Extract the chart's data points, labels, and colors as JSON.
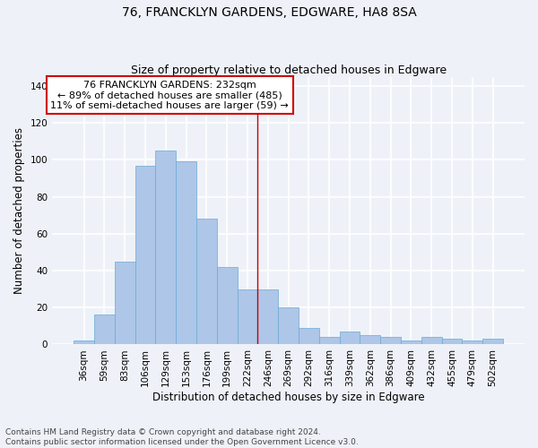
{
  "title": "76, FRANCKLYN GARDENS, EDGWARE, HA8 8SA",
  "subtitle": "Size of property relative to detached houses in Edgware",
  "xlabel": "Distribution of detached houses by size in Edgware",
  "ylabel": "Number of detached properties",
  "categories": [
    "36sqm",
    "59sqm",
    "83sqm",
    "106sqm",
    "129sqm",
    "153sqm",
    "176sqm",
    "199sqm",
    "222sqm",
    "246sqm",
    "269sqm",
    "292sqm",
    "316sqm",
    "339sqm",
    "362sqm",
    "386sqm",
    "409sqm",
    "432sqm",
    "455sqm",
    "479sqm",
    "502sqm"
  ],
  "values": [
    2,
    16,
    45,
    97,
    105,
    99,
    68,
    42,
    30,
    30,
    20,
    9,
    4,
    7,
    5,
    4,
    2,
    4,
    3,
    2,
    3
  ],
  "bar_color": "#aec6e8",
  "bar_edge_color": "#6aaad4",
  "marker_label_line1": "76 FRANCKLYN GARDENS: 232sqm",
  "marker_label_line2": "← 89% of detached houses are smaller (485)",
  "marker_label_line3": "11% of semi-detached houses are larger (59) →",
  "annotation_box_color": "#ffffff",
  "annotation_box_edge_color": "#cc0000",
  "vline_color": "#cc0000",
  "vline_x": 8.5,
  "ylim": [
    0,
    145
  ],
  "yticks": [
    0,
    20,
    40,
    60,
    80,
    100,
    120,
    140
  ],
  "footer_line1": "Contains HM Land Registry data © Crown copyright and database right 2024.",
  "footer_line2": "Contains public sector information licensed under the Open Government Licence v3.0.",
  "background_color": "#eef2f8",
  "grid_color": "#ffffff",
  "title_fontsize": 10,
  "subtitle_fontsize": 9,
  "axis_label_fontsize": 8.5,
  "tick_fontsize": 7.5,
  "footer_fontsize": 6.5,
  "annotation_fontsize": 8
}
